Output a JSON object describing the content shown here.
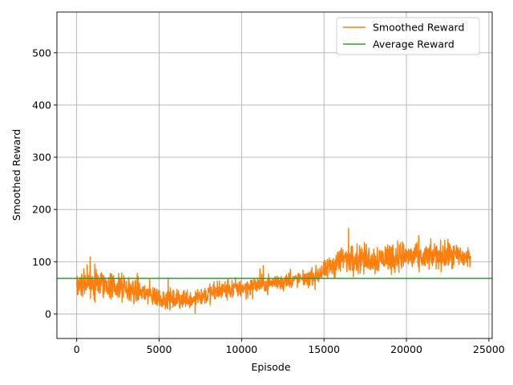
{
  "chart_data": {
    "type": "line",
    "title": "",
    "xlabel": "Episode",
    "ylabel": "Smoothed Reward",
    "xlim": [
      -1200,
      25200
    ],
    "ylim": [
      -47,
      578
    ],
    "x_ticks": [
      0,
      5000,
      10000,
      15000,
      20000,
      25000
    ],
    "x_tick_labels": [
      "0",
      "5000",
      "10000",
      "15000",
      "20000",
      "25000"
    ],
    "y_ticks": [
      0,
      100,
      200,
      300,
      400,
      500
    ],
    "y_tick_labels": [
      "0",
      "100",
      "200",
      "300",
      "400",
      "500"
    ],
    "grid": true,
    "legend_position": "top-right",
    "series": [
      {
        "name": "Smoothed Reward",
        "color": "#ff7f0e",
        "kind": "noisy-line",
        "x_start": 0,
        "x_end": 23900,
        "trend_x": [
          0,
          1000,
          2000,
          3000,
          4000,
          5000,
          6000,
          7000,
          8000,
          9000,
          10000,
          11000,
          12000,
          13000,
          14000,
          15000,
          16000,
          17000,
          18000,
          19000,
          20000,
          21000,
          22000,
          23000,
          23900
        ],
        "trend_mean": [
          60,
          58,
          55,
          48,
          42,
          30,
          27,
          30,
          38,
          45,
          50,
          55,
          60,
          65,
          68,
          80,
          105,
          108,
          105,
          110,
          110,
          108,
          112,
          110,
          108
        ],
        "trend_spread": [
          40,
          42,
          42,
          40,
          38,
          30,
          28,
          28,
          30,
          30,
          28,
          26,
          24,
          22,
          20,
          28,
          40,
          42,
          42,
          45,
          42,
          38,
          40,
          38,
          36
        ],
        "y_min": -8,
        "y_max": 180
      },
      {
        "name": "Average Reward",
        "color": "#2ca02c",
        "kind": "hline",
        "value": 68
      }
    ]
  }
}
